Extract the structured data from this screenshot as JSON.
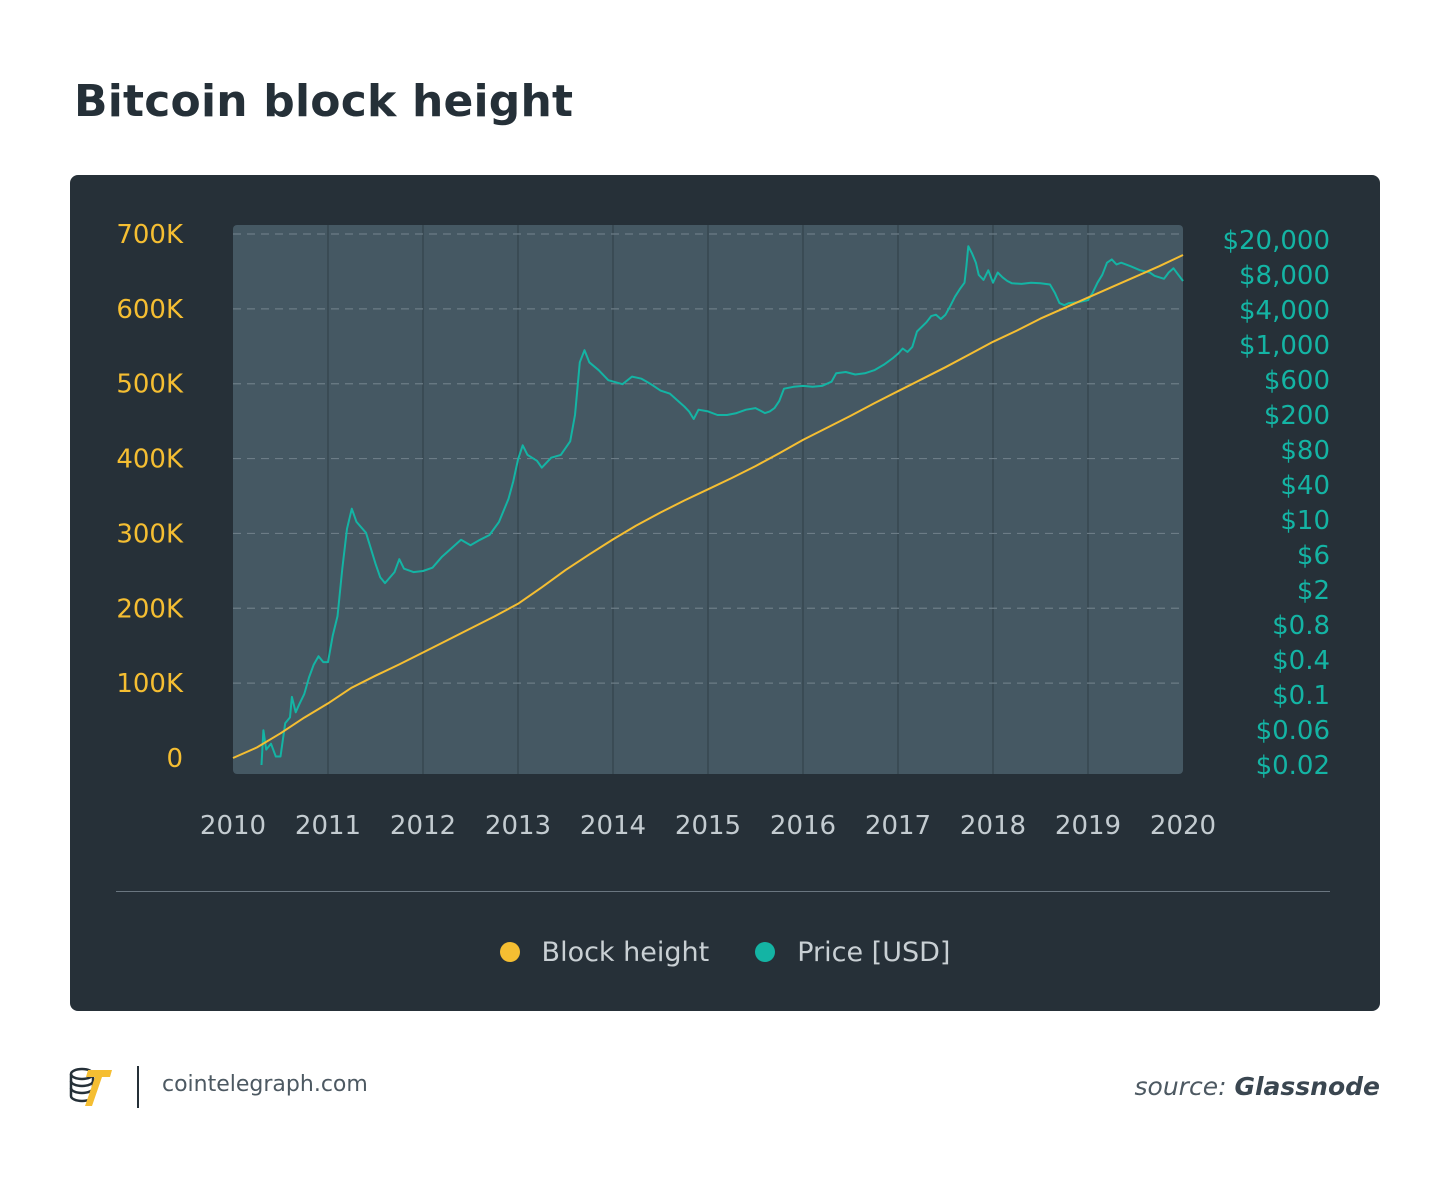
{
  "title": "Bitcoin block height",
  "colors": {
    "block_height": "#f5be32",
    "price": "#14b4a4",
    "panel_bg": "#263038",
    "plot_bg": "#455863"
  },
  "chart_data": {
    "type": "line",
    "title": "Bitcoin block height",
    "x_tick_labels": [
      "2010",
      "2011",
      "2012",
      "2013",
      "2014",
      "2015",
      "2016",
      "2017",
      "2018",
      "2019",
      "2020"
    ],
    "y_left_tick_labels": [
      "0",
      "100K",
      "200K",
      "300K",
      "400K",
      "500K",
      "600K",
      "700K"
    ],
    "y_left_ticks": [
      0,
      100000,
      200000,
      300000,
      400000,
      500000,
      600000,
      700000
    ],
    "y_left_range": [
      0,
      700000
    ],
    "y_right_tick_labels": [
      "$0.02",
      "$0.06",
      "$0.1",
      "$0.4",
      "$0.8",
      "$2",
      "$6",
      "$10",
      "$40",
      "$80",
      "$200",
      "$600",
      "$1,000",
      "$4,000",
      "$8,000",
      "$20,000"
    ],
    "y_right_scale": "log",
    "x_range": [
      2010.0,
      2020.0
    ],
    "grid": "horizontal dashed, vertical solid",
    "legend_position": "bottom",
    "series": [
      {
        "name": "Block height",
        "axis": "left",
        "points": [
          [
            2010.0,
            0
          ],
          [
            2010.25,
            14000
          ],
          [
            2010.5,
            33000
          ],
          [
            2010.75,
            54000
          ],
          [
            2011.0,
            73000
          ],
          [
            2011.25,
            94000
          ],
          [
            2011.5,
            110000
          ],
          [
            2011.75,
            125000
          ],
          [
            2012.0,
            141000
          ],
          [
            2012.25,
            157000
          ],
          [
            2012.5,
            173000
          ],
          [
            2012.75,
            189000
          ],
          [
            2013.0,
            206000
          ],
          [
            2013.25,
            228000
          ],
          [
            2013.5,
            251000
          ],
          [
            2013.75,
            272000
          ],
          [
            2014.0,
            292000
          ],
          [
            2014.25,
            311000
          ],
          [
            2014.5,
            328000
          ],
          [
            2014.75,
            344000
          ],
          [
            2015.0,
            359000
          ],
          [
            2015.25,
            374000
          ],
          [
            2015.5,
            390000
          ],
          [
            2015.75,
            407000
          ],
          [
            2016.0,
            425000
          ],
          [
            2016.25,
            441000
          ],
          [
            2016.5,
            457000
          ],
          [
            2016.75,
            474000
          ],
          [
            2017.0,
            490000
          ],
          [
            2017.25,
            506000
          ],
          [
            2017.5,
            522000
          ],
          [
            2017.75,
            539000
          ],
          [
            2018.0,
            556000
          ],
          [
            2018.25,
            571000
          ],
          [
            2018.5,
            587000
          ],
          [
            2018.75,
            601000
          ],
          [
            2019.0,
            615000
          ],
          [
            2019.25,
            629000
          ],
          [
            2019.5,
            643000
          ],
          [
            2019.75,
            657000
          ],
          [
            2020.0,
            672000
          ]
        ]
      },
      {
        "name": "Price [USD]",
        "axis": "right",
        "points": [
          [
            2010.3,
            0.02
          ],
          [
            2010.32,
            0.05
          ],
          [
            2010.35,
            0.03
          ],
          [
            2010.4,
            0.035
          ],
          [
            2010.45,
            0.025
          ],
          [
            2010.5,
            0.025
          ],
          [
            2010.55,
            0.06
          ],
          [
            2010.6,
            0.07
          ],
          [
            2010.62,
            0.12
          ],
          [
            2010.66,
            0.08
          ],
          [
            2010.7,
            0.1
          ],
          [
            2010.75,
            0.13
          ],
          [
            2010.8,
            0.2
          ],
          [
            2010.85,
            0.28
          ],
          [
            2010.9,
            0.35
          ],
          [
            2010.95,
            0.3
          ],
          [
            2011.0,
            0.3
          ],
          [
            2011.05,
            0.6
          ],
          [
            2011.1,
            1.0
          ],
          [
            2011.15,
            3.5
          ],
          [
            2011.2,
            10
          ],
          [
            2011.25,
            17
          ],
          [
            2011.3,
            12
          ],
          [
            2011.4,
            9
          ],
          [
            2011.45,
            6
          ],
          [
            2011.5,
            4
          ],
          [
            2011.55,
            2.8
          ],
          [
            2011.6,
            2.4
          ],
          [
            2011.7,
            3.2
          ],
          [
            2011.75,
            4.5
          ],
          [
            2011.8,
            3.5
          ],
          [
            2011.9,
            3.2
          ],
          [
            2012.0,
            3.3
          ],
          [
            2012.1,
            3.6
          ],
          [
            2012.2,
            4.8
          ],
          [
            2012.3,
            6.0
          ],
          [
            2012.4,
            7.5
          ],
          [
            2012.5,
            6.5
          ],
          [
            2012.6,
            7.5
          ],
          [
            2012.7,
            8.5
          ],
          [
            2012.8,
            12
          ],
          [
            2012.9,
            22
          ],
          [
            2012.95,
            35
          ],
          [
            2013.0,
            62
          ],
          [
            2013.05,
            90
          ],
          [
            2013.1,
            70
          ],
          [
            2013.2,
            60
          ],
          [
            2013.25,
            50
          ],
          [
            2013.35,
            65
          ],
          [
            2013.45,
            70
          ],
          [
            2013.55,
            100
          ],
          [
            2013.6,
            200
          ],
          [
            2013.65,
            800
          ],
          [
            2013.7,
            1100
          ],
          [
            2013.75,
            800
          ],
          [
            2013.85,
            650
          ],
          [
            2013.95,
            500
          ],
          [
            2014.1,
            450
          ],
          [
            2014.2,
            550
          ],
          [
            2014.3,
            520
          ],
          [
            2014.4,
            450
          ],
          [
            2014.5,
            380
          ],
          [
            2014.6,
            350
          ],
          [
            2014.7,
            280
          ],
          [
            2014.75,
            250
          ],
          [
            2014.8,
            220
          ],
          [
            2014.85,
            180
          ],
          [
            2014.9,
            230
          ],
          [
            2015.0,
            220
          ],
          [
            2015.1,
            200
          ],
          [
            2015.2,
            200
          ],
          [
            2015.3,
            210
          ],
          [
            2015.4,
            230
          ],
          [
            2015.5,
            240
          ],
          [
            2015.6,
            210
          ],
          [
            2015.65,
            220
          ],
          [
            2015.7,
            240
          ],
          [
            2015.75,
            290
          ],
          [
            2015.8,
            400
          ],
          [
            2015.9,
            420
          ],
          [
            2016.0,
            430
          ],
          [
            2016.1,
            420
          ],
          [
            2016.2,
            430
          ],
          [
            2016.3,
            480
          ],
          [
            2016.35,
            600
          ],
          [
            2016.45,
            620
          ],
          [
            2016.55,
            580
          ],
          [
            2016.65,
            600
          ],
          [
            2016.75,
            650
          ],
          [
            2016.85,
            750
          ],
          [
            2016.95,
            900
          ],
          [
            2017.0,
            1000
          ],
          [
            2017.05,
            1150
          ],
          [
            2017.1,
            1050
          ],
          [
            2017.15,
            1200
          ],
          [
            2017.2,
            1800
          ],
          [
            2017.3,
            2300
          ],
          [
            2017.35,
            2700
          ],
          [
            2017.4,
            2800
          ],
          [
            2017.45,
            2500
          ],
          [
            2017.5,
            2800
          ],
          [
            2017.55,
            3500
          ],
          [
            2017.6,
            4500
          ],
          [
            2017.65,
            5500
          ],
          [
            2017.7,
            6500
          ],
          [
            2017.72,
            10000
          ],
          [
            2017.74,
            17000
          ],
          [
            2017.78,
            14000
          ],
          [
            2017.82,
            11000
          ],
          [
            2017.85,
            8000
          ],
          [
            2017.9,
            7000
          ],
          [
            2017.95,
            9000
          ],
          [
            2018.0,
            6500
          ],
          [
            2018.05,
            8500
          ],
          [
            2018.1,
            7500
          ],
          [
            2018.15,
            6800
          ],
          [
            2018.2,
            6400
          ],
          [
            2018.3,
            6300
          ],
          [
            2018.4,
            6500
          ],
          [
            2018.5,
            6400
          ],
          [
            2018.55,
            6300
          ],
          [
            2018.6,
            6200
          ],
          [
            2018.65,
            5000
          ],
          [
            2018.7,
            3800
          ],
          [
            2018.75,
            3600
          ],
          [
            2018.8,
            3800
          ],
          [
            2018.9,
            3900
          ],
          [
            2019.0,
            4100
          ],
          [
            2019.05,
            5000
          ],
          [
            2019.1,
            6500
          ],
          [
            2019.15,
            8000
          ],
          [
            2019.2,
            11000
          ],
          [
            2019.25,
            12000
          ],
          [
            2019.3,
            10500
          ],
          [
            2019.35,
            11000
          ],
          [
            2019.45,
            10000
          ],
          [
            2019.55,
            9000
          ],
          [
            2019.65,
            8500
          ],
          [
            2019.7,
            7800
          ],
          [
            2019.75,
            7500
          ],
          [
            2019.8,
            7200
          ],
          [
            2019.85,
            8500
          ],
          [
            2019.9,
            9500
          ],
          [
            2019.95,
            8000
          ],
          [
            2020.0,
            6800
          ]
        ]
      }
    ]
  },
  "legend": {
    "items": [
      {
        "label": "Block height"
      },
      {
        "label": "Price [USD]"
      }
    ]
  },
  "footer": {
    "site": "cointelegraph.com",
    "source_prefix": "source: ",
    "source_name": "Glassnode",
    "logo_icon": "cointelegraph-logo-icon"
  }
}
